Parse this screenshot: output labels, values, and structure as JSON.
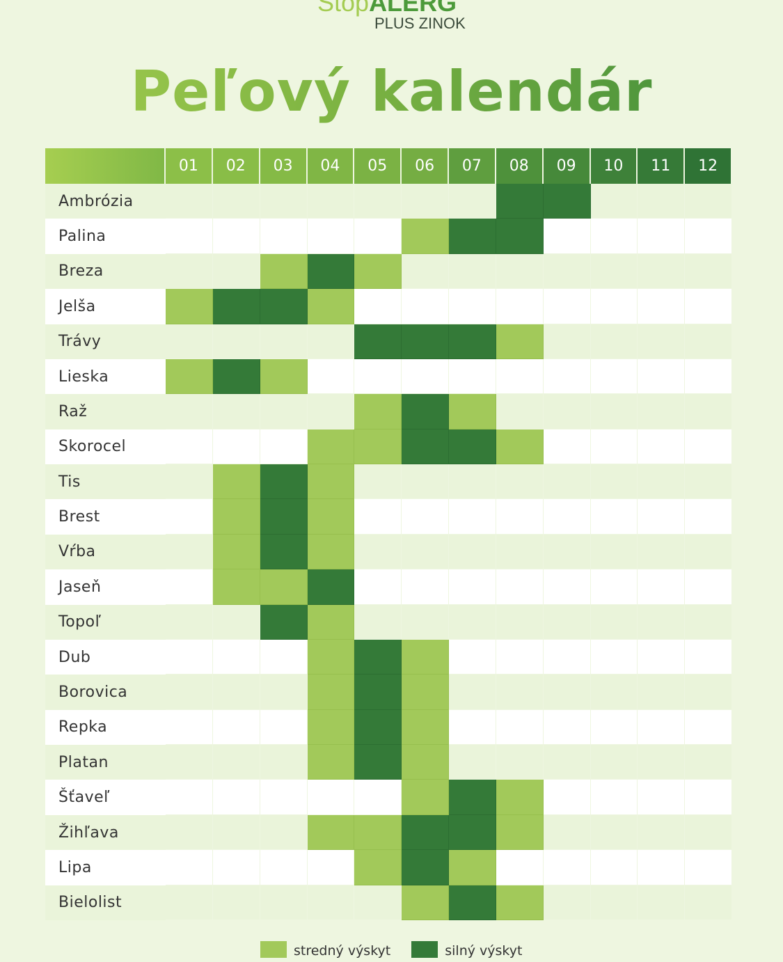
{
  "brand": {
    "logo_part1": "Stop",
    "logo_part2": "ALERG",
    "logo_sub": "PLUS ZINOK"
  },
  "title": "Peľový kalendár",
  "colors": {
    "medium": "#a2c95a",
    "strong": "#347a38",
    "row_odd": "#eaf4da",
    "row_even": "#ffffff"
  },
  "months": [
    "01",
    "02",
    "03",
    "04",
    "05",
    "06",
    "07",
    "08",
    "09",
    "10",
    "11",
    "12"
  ],
  "header_colors": [
    "#8cbf48",
    "#89bd47",
    "#85ba46",
    "#80b645",
    "#7bb244",
    "#75ad43",
    "#5f9e3f",
    "#4e913b",
    "#46893a",
    "#3e8139",
    "#367a37",
    "#2f7335"
  ],
  "legend": {
    "medium_label": "stredný výskyt",
    "strong_label": "silný výskyt"
  },
  "plants": [
    {
      "name": "Ambrózia",
      "levels": [
        0,
        0,
        0,
        0,
        0,
        0,
        0,
        2,
        2,
        0,
        0,
        0
      ]
    },
    {
      "name": "Palina",
      "levels": [
        0,
        0,
        0,
        0,
        0,
        1,
        2,
        2,
        0,
        0,
        0,
        0
      ]
    },
    {
      "name": "Breza",
      "levels": [
        0,
        0,
        1,
        2,
        1,
        0,
        0,
        0,
        0,
        0,
        0,
        0
      ]
    },
    {
      "name": "Jelša",
      "levels": [
        1,
        2,
        2,
        1,
        0,
        0,
        0,
        0,
        0,
        0,
        0,
        0
      ]
    },
    {
      "name": "Trávy",
      "levels": [
        0,
        0,
        0,
        0,
        2,
        2,
        2,
        1,
        0,
        0,
        0,
        0
      ]
    },
    {
      "name": "Lieska",
      "levels": [
        1,
        2,
        1,
        0,
        0,
        0,
        0,
        0,
        0,
        0,
        0,
        0
      ]
    },
    {
      "name": "Raž",
      "levels": [
        0,
        0,
        0,
        0,
        1,
        2,
        1,
        0,
        0,
        0,
        0,
        0
      ]
    },
    {
      "name": "Skorocel",
      "levels": [
        0,
        0,
        0,
        1,
        1,
        2,
        2,
        1,
        0,
        0,
        0,
        0
      ]
    },
    {
      "name": "Tis",
      "levels": [
        0,
        1,
        2,
        1,
        0,
        0,
        0,
        0,
        0,
        0,
        0,
        0
      ]
    },
    {
      "name": "Brest",
      "levels": [
        0,
        1,
        2,
        1,
        0,
        0,
        0,
        0,
        0,
        0,
        0,
        0
      ]
    },
    {
      "name": "Vŕba",
      "levels": [
        0,
        1,
        2,
        1,
        0,
        0,
        0,
        0,
        0,
        0,
        0,
        0
      ]
    },
    {
      "name": "Jaseň",
      "levels": [
        0,
        1,
        1,
        2,
        0,
        0,
        0,
        0,
        0,
        0,
        0,
        0
      ]
    },
    {
      "name": "Topoľ",
      "levels": [
        0,
        0,
        2,
        1,
        0,
        0,
        0,
        0,
        0,
        0,
        0,
        0
      ]
    },
    {
      "name": "Dub",
      "levels": [
        0,
        0,
        0,
        1,
        2,
        1,
        0,
        0,
        0,
        0,
        0,
        0
      ]
    },
    {
      "name": "Borovica",
      "levels": [
        0,
        0,
        0,
        1,
        2,
        1,
        0,
        0,
        0,
        0,
        0,
        0
      ]
    },
    {
      "name": "Repka",
      "levels": [
        0,
        0,
        0,
        1,
        2,
        1,
        0,
        0,
        0,
        0,
        0,
        0
      ]
    },
    {
      "name": "Platan",
      "levels": [
        0,
        0,
        0,
        1,
        2,
        1,
        0,
        0,
        0,
        0,
        0,
        0
      ]
    },
    {
      "name": "Šťaveľ",
      "levels": [
        0,
        0,
        0,
        0,
        0,
        1,
        2,
        1,
        0,
        0,
        0,
        0
      ]
    },
    {
      "name": "Žihľava",
      "levels": [
        0,
        0,
        0,
        1,
        1,
        2,
        2,
        1,
        0,
        0,
        0,
        0
      ]
    },
    {
      "name": "Lipa",
      "levels": [
        0,
        0,
        0,
        0,
        1,
        2,
        1,
        0,
        0,
        0,
        0,
        0
      ]
    },
    {
      "name": "Bielolist",
      "levels": [
        0,
        0,
        0,
        0,
        0,
        1,
        2,
        1,
        0,
        0,
        0,
        0
      ]
    }
  ]
}
